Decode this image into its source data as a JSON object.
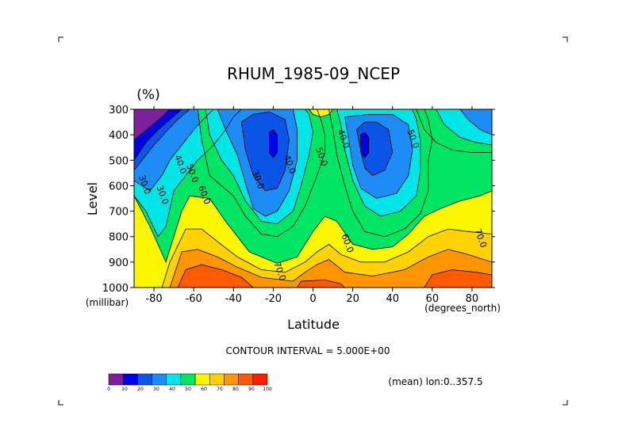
{
  "chart_data": {
    "type": "contour",
    "title": "RHUM_1985-09_NCEP",
    "units": "(%)",
    "xlabel": "Latitude",
    "ylabel": "Level",
    "x_units": "(degrees_north)",
    "y_units": "(millibar)",
    "xlim": [
      -90,
      90
    ],
    "ylim": [
      1000,
      300
    ],
    "x_ticks": [
      -80,
      -60,
      -40,
      -20,
      0,
      20,
      40,
      60,
      80
    ],
    "y_ticks": [
      300,
      400,
      500,
      600,
      700,
      800,
      900,
      1000
    ],
    "contour_interval_text": "CONTOUR INTERVAL = 5.000E+00",
    "mean_text": "(mean) lon:0..357.5",
    "contour_labels": [
      {
        "text": "30.0",
        "lat": -86,
        "lev": 600
      },
      {
        "text": "30.0",
        "lat": -77,
        "lev": 640
      },
      {
        "text": "40.0",
        "lat": -68,
        "lev": 520
      },
      {
        "text": "50.0",
        "lat": -62,
        "lev": 555
      },
      {
        "text": "60.0",
        "lat": -56,
        "lev": 640
      },
      {
        "text": "30.0",
        "lat": -29,
        "lev": 580
      },
      {
        "text": "40.0",
        "lat": -13,
        "lev": 520
      },
      {
        "text": "50.0",
        "lat": 3,
        "lev": 490
      },
      {
        "text": "40.0",
        "lat": 14,
        "lev": 420
      },
      {
        "text": "50.0",
        "lat": 49,
        "lev": 420
      },
      {
        "text": "70.0",
        "lat": -18,
        "lev": 940
      },
      {
        "text": "60.0",
        "lat": 16,
        "lev": 830
      },
      {
        "text": "70.0",
        "lat": 83,
        "lev": 810
      }
    ],
    "colorbar": {
      "ticks": [
        "0",
        "10",
        "20",
        "30",
        "40",
        "50",
        "60",
        "70",
        "80",
        "90",
        "100"
      ],
      "colors": [
        "#7f1f9f",
        "#0000e6",
        "#0a55e6",
        "#1e8cf5",
        "#00e6e6",
        "#00e664",
        "#faf500",
        "#ffd200",
        "#ff9600",
        "#ff5a00",
        "#ff1e00"
      ]
    }
  }
}
